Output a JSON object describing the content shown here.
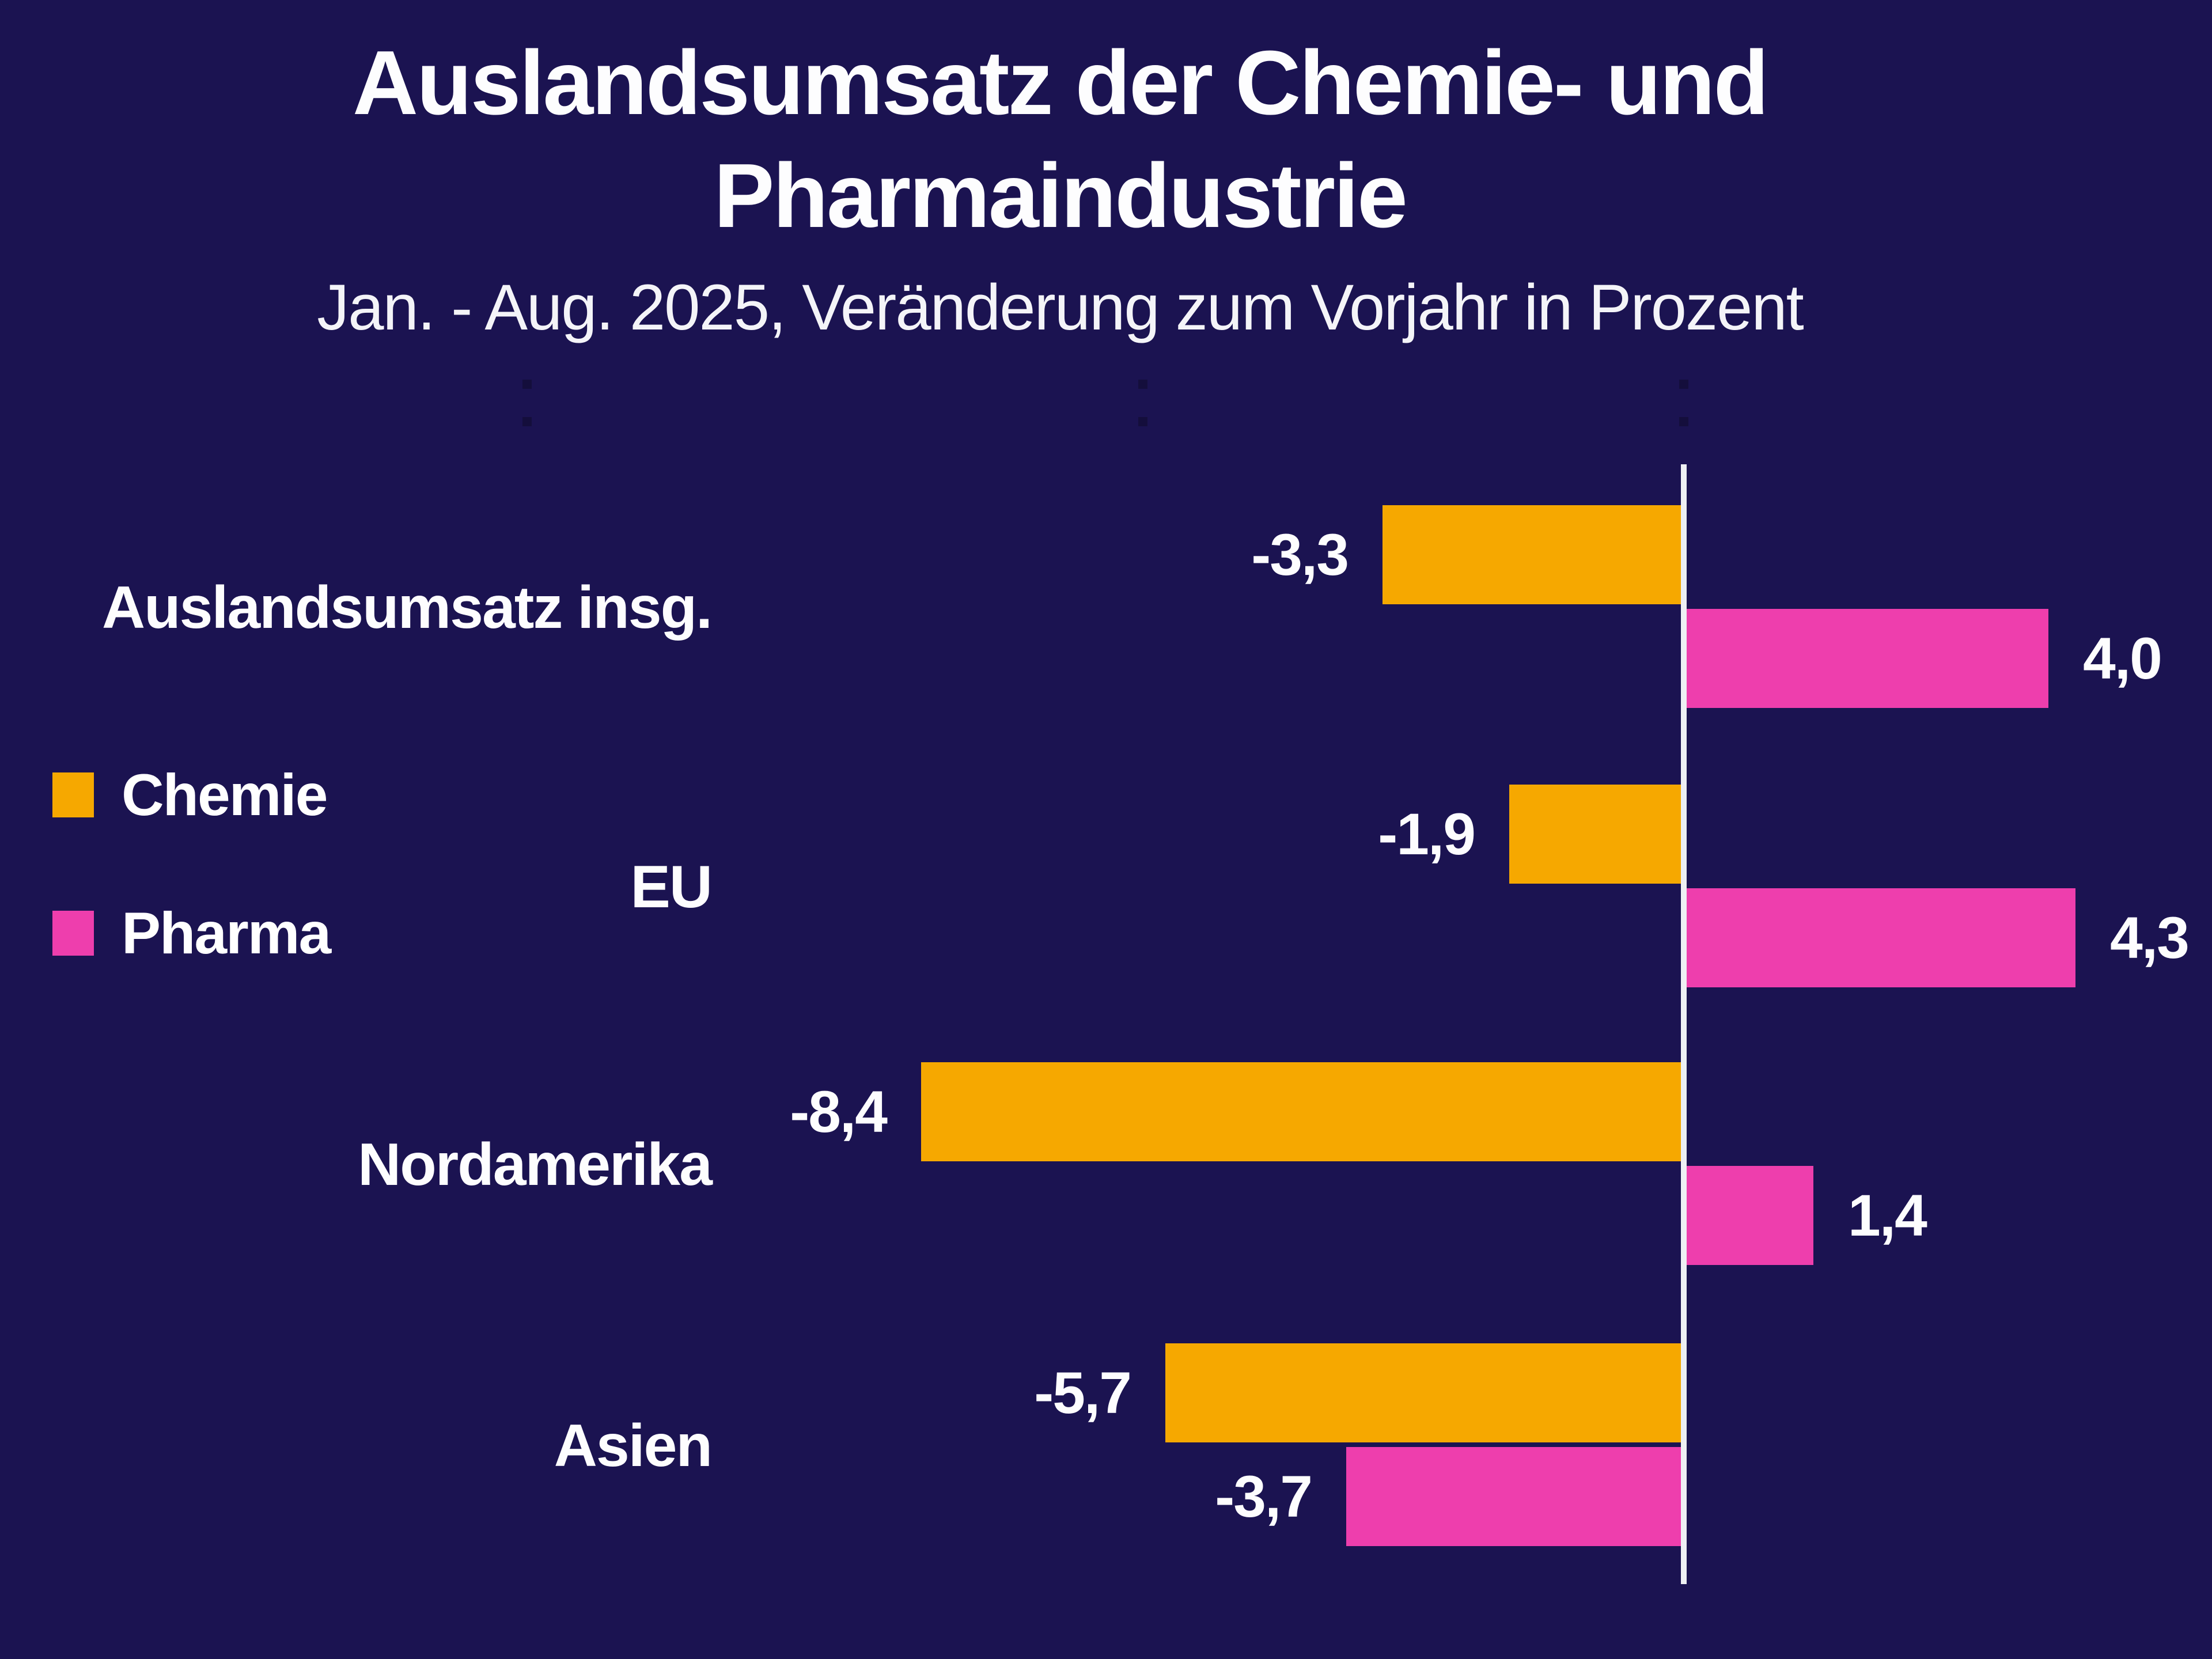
{
  "title": {
    "line1": "Auslandsumsatz der Chemie- und",
    "line2": "Pharmaindustrie"
  },
  "subtitle": "Jan. - Aug. 2025, Veränderung zum Vorjahr in Prozent",
  "colors": {
    "background": "#1b1351",
    "axis_line": "#eef0f3",
    "text": "#fdfdfe",
    "chemie": "#f6a800",
    "pharma": "#ee3ead"
  },
  "chart_data": {
    "type": "bar",
    "orientation": "horizontal",
    "title": "Auslandsumsatz der Chemie- und Pharmaindustrie",
    "subtitle": "Jan. - Aug. 2025, Veränderung zum Vorjahr in Prozent",
    "unit": "Prozent, Veränderung zum Vorjahr",
    "categories": [
      "Auslandsumsatz insg.",
      "EU",
      "Nordamerika",
      "Asien"
    ],
    "series": [
      {
        "name": "Chemie",
        "color": "#f6a800",
        "values": [
          -3.3,
          -1.9,
          -8.4,
          -5.7
        ],
        "labels": [
          "-3,3",
          "-1,9",
          "-8,4",
          "-5,7"
        ]
      },
      {
        "name": "Pharma",
        "color": "#ee3ead",
        "values": [
          4.0,
          4.3,
          1.4,
          -3.7
        ],
        "labels": [
          "4,0",
          "4,3",
          "1,4",
          "-3,7"
        ]
      }
    ],
    "xlim": [
      -9.3,
      5.8
    ],
    "grid": false,
    "legend_position": "left",
    "zero_axis": true
  }
}
